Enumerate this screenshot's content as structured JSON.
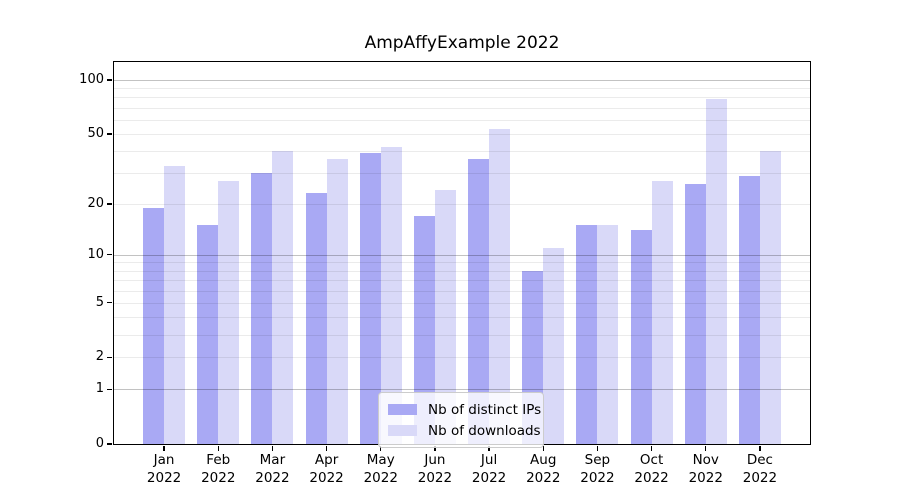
{
  "figure": {
    "title": "AmpAffyExample 2022"
  },
  "chart_data": {
    "type": "bar",
    "title": "AmpAffyExample 2022",
    "categories": [
      "Jan 2022",
      "Feb 2022",
      "Mar 2022",
      "Apr 2022",
      "May 2022",
      "Jun 2022",
      "Jul 2022",
      "Aug 2022",
      "Sep 2022",
      "Oct 2022",
      "Nov 2022",
      "Dec 2022"
    ],
    "series": [
      {
        "name": "Nb of distinct IPs",
        "color": "#a9a9f4",
        "values": [
          19,
          15,
          30,
          23,
          39,
          17,
          36,
          8,
          15,
          14,
          26,
          29
        ]
      },
      {
        "name": "Nb of downloads",
        "color": "#d9d9f8",
        "values": [
          33,
          27,
          40,
          36,
          42,
          24,
          53,
          11,
          15,
          27,
          78,
          40
        ]
      }
    ],
    "yscale": "log1p",
    "ylim": [
      0,
      126
    ],
    "ytick_labels": [
      100,
      50,
      20,
      10,
      5,
      2,
      1,
      0
    ],
    "gridlines_major": [
      1,
      10,
      100
    ],
    "gridlines_minor": [
      2,
      3,
      4,
      5,
      6,
      7,
      8,
      9,
      20,
      30,
      40,
      50,
      60,
      70,
      80,
      90
    ],
    "grid": true,
    "legend_position": "lower center",
    "xlabel": "",
    "ylabel": ""
  },
  "colors": {
    "grid_major": "rgba(0,0,0,0.24)",
    "grid_minor": "rgba(0,0,0,0.08)",
    "spine": "#000000",
    "legend_bg": "rgba(255,255,255,0.8)",
    "legend_border": "#cccccc",
    "text": "#000000"
  }
}
